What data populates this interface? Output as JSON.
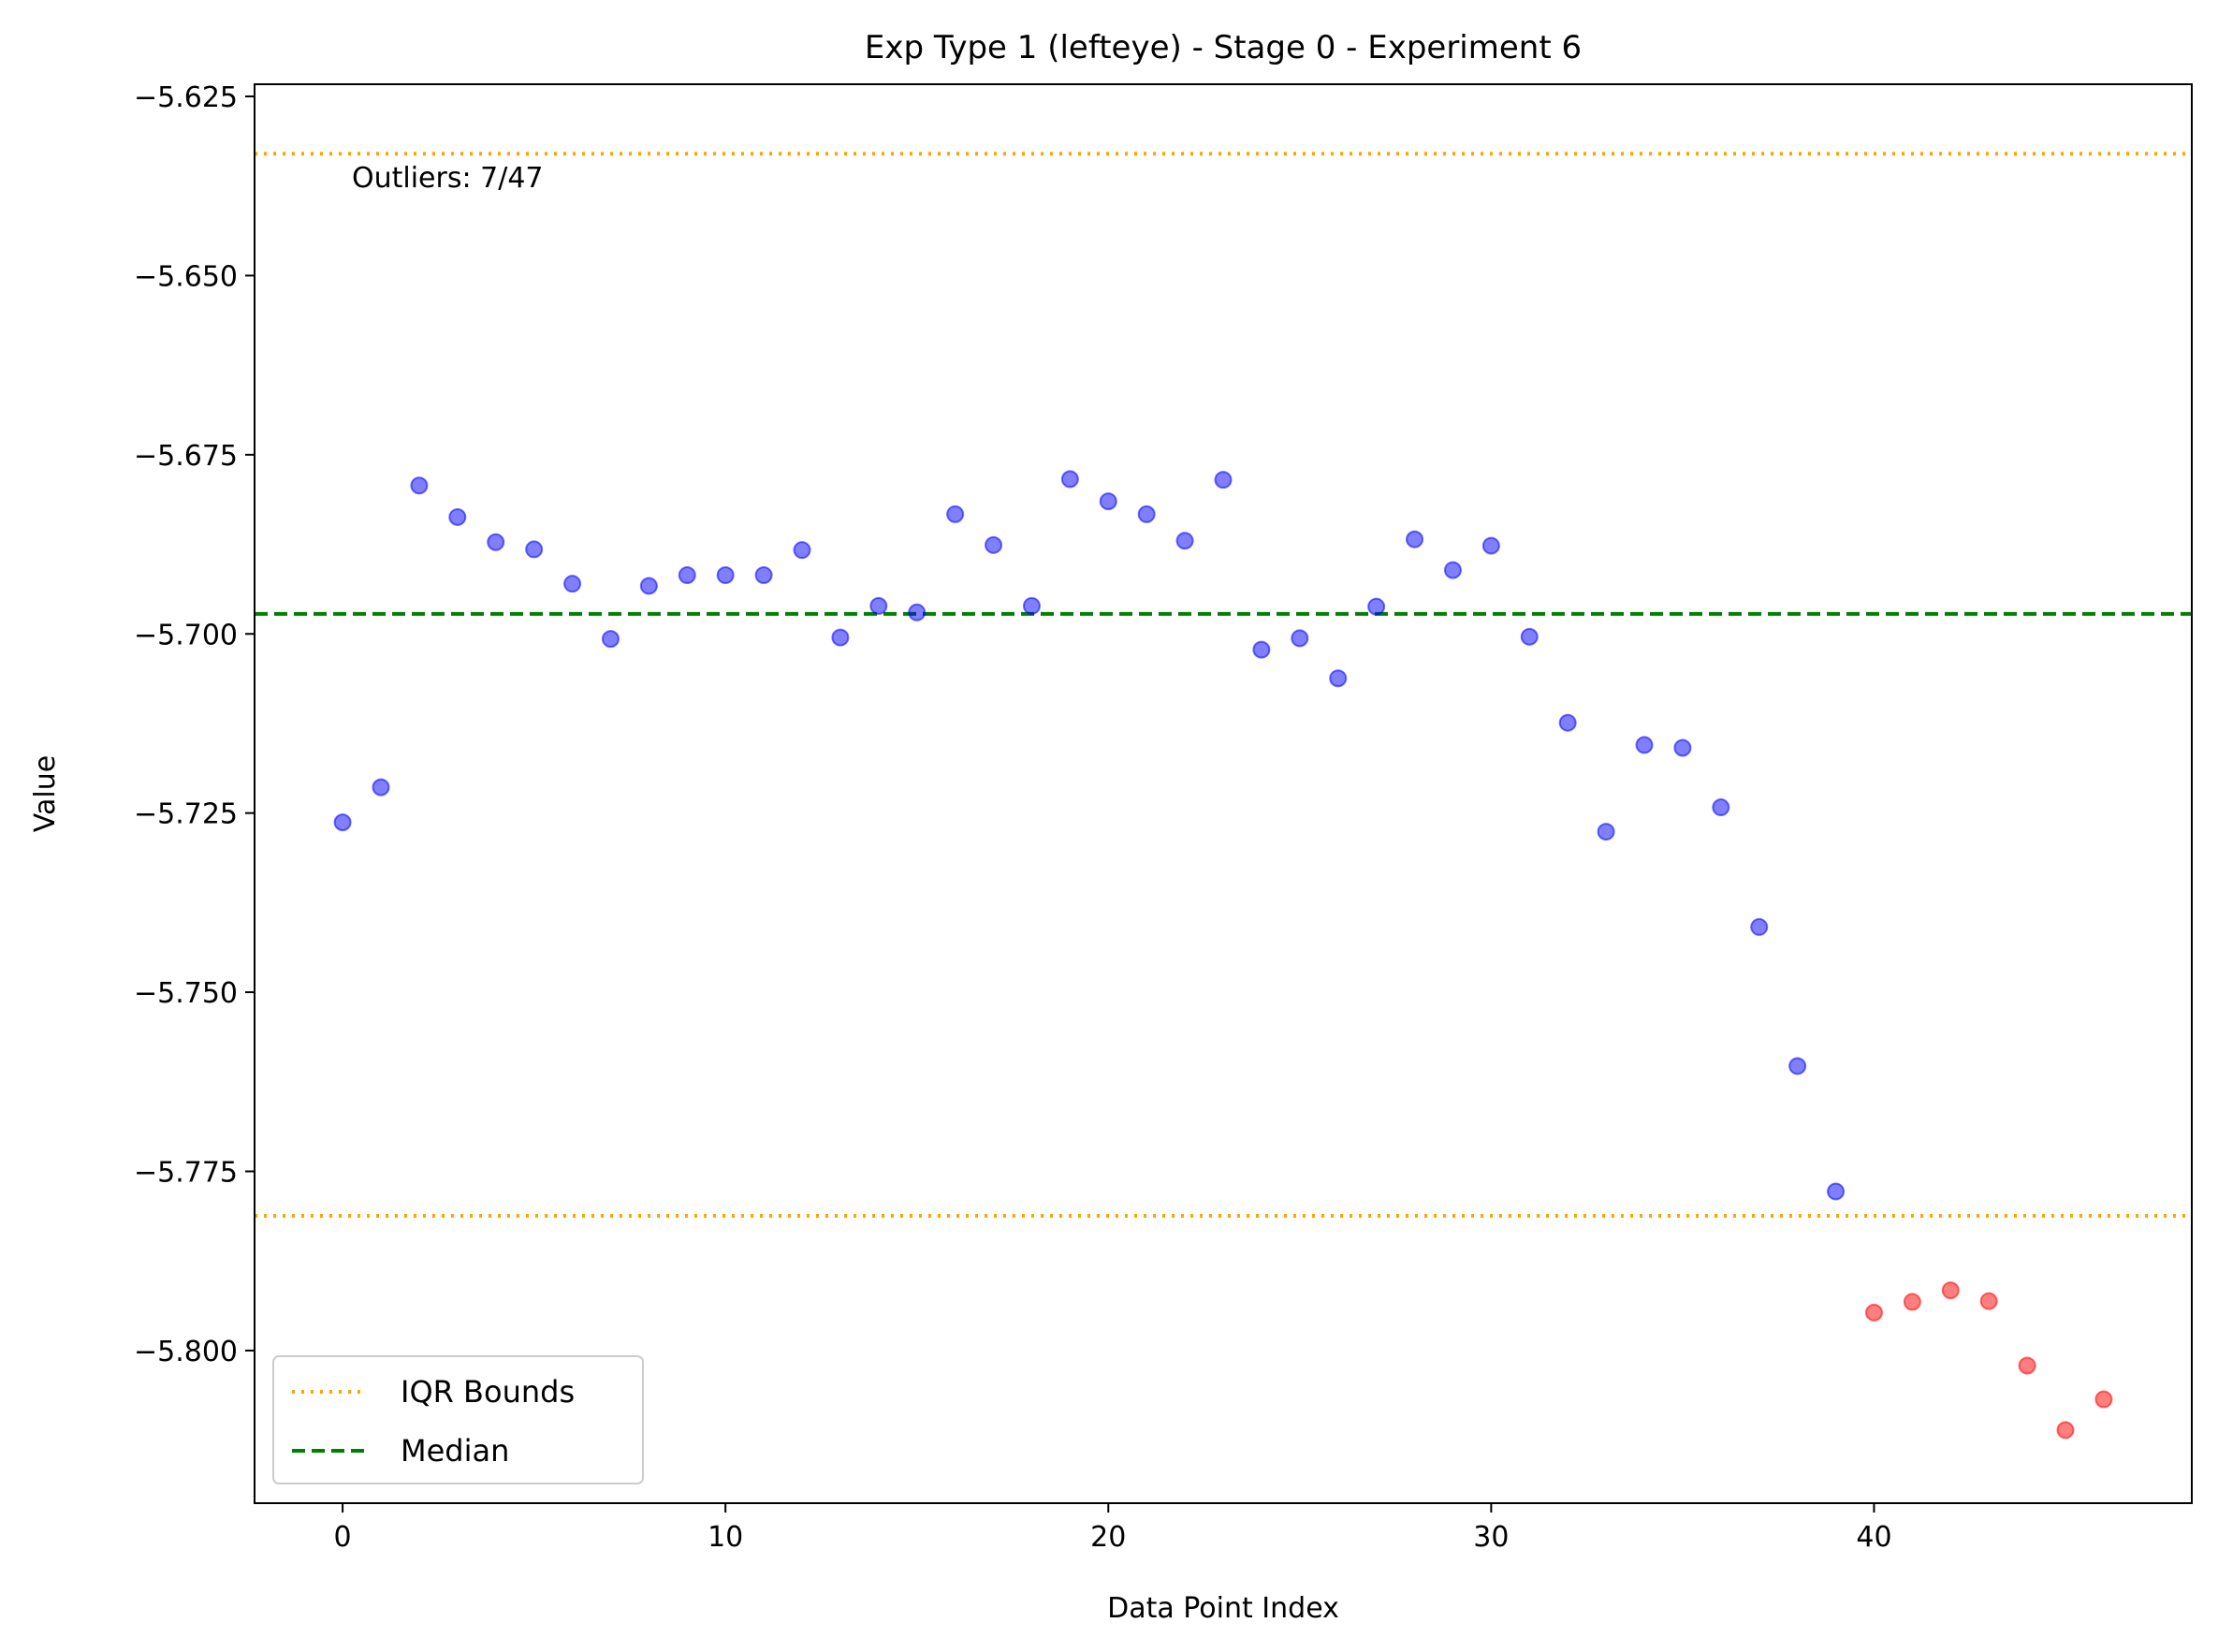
{
  "chart_data": {
    "type": "scatter",
    "title": "Exp Type 1 (lefteye) - Stage 0 - Experiment 6",
    "xlabel": "Data Point Index",
    "ylabel": "Value",
    "xlim": [
      -2.3,
      48.3
    ],
    "ylim": [
      -5.8213,
      -5.6233
    ],
    "x_ticks": [
      0,
      10,
      20,
      30,
      40
    ],
    "y_ticks": [
      -5.8,
      -5.775,
      -5.75,
      -5.725,
      -5.7,
      -5.675,
      -5.65,
      -5.625
    ],
    "y_tick_labels": [
      "−5.800",
      "−5.775",
      "−5.750",
      "−5.725",
      "−5.700",
      "−5.675",
      "−5.650",
      "−5.625"
    ],
    "grid": false,
    "series": [
      {
        "color": "#0000ff",
        "x": [
          0,
          1,
          2,
          3,
          4,
          5,
          6,
          7,
          8,
          9,
          10,
          11,
          12,
          13,
          14,
          15,
          16,
          17,
          18,
          19,
          20,
          21,
          22,
          23,
          24,
          25,
          26,
          27,
          28,
          29,
          30,
          31,
          32,
          33,
          34,
          35,
          36,
          37,
          38,
          39
        ],
        "values": [
          -5.7263,
          -5.7214,
          -5.6793,
          -5.6837,
          -5.6872,
          -5.6882,
          -5.693,
          -5.7007,
          -5.6933,
          -5.6918,
          -5.6918,
          -5.6918,
          -5.6883,
          -5.7005,
          -5.6961,
          -5.697,
          -5.6833,
          -5.6876,
          -5.6961,
          -5.6784,
          -5.6815,
          -5.6833,
          -5.687,
          -5.6785,
          -5.7022,
          -5.7006,
          -5.7062,
          -5.6962,
          -5.6868,
          -5.6911,
          -5.6877,
          -5.7004,
          -5.7124,
          -5.7276,
          -5.7155,
          -5.7159,
          -5.7242,
          -5.7409,
          -5.7603,
          -5.7778
        ]
      },
      {
        "color": "#ff0000",
        "x": [
          40,
          41,
          42,
          43,
          44,
          45,
          46
        ],
        "values": [
          -5.7947,
          -5.7932,
          -5.7916,
          -5.7931,
          -5.8021,
          -5.8111,
          -5.8068
        ]
      }
    ],
    "lines": [
      {
        "name": "IQR Bounds",
        "style": "dotted",
        "color": "#ffa500",
        "y": -5.633
      },
      {
        "name": "IQR Bounds",
        "style": "dotted",
        "color": "#ffa500",
        "y": -5.7812
      },
      {
        "name": "Median",
        "style": "dashed",
        "color": "#008000",
        "y": -5.6972
      }
    ],
    "legend": {
      "position": "lower-left",
      "entries": [
        {
          "label": "IQR Bounds",
          "style": "dotted",
          "color": "#ffa500"
        },
        {
          "label": "Median",
          "style": "dashed",
          "color": "#008000"
        }
      ]
    },
    "annotation": "Outliers: 7/47"
  }
}
